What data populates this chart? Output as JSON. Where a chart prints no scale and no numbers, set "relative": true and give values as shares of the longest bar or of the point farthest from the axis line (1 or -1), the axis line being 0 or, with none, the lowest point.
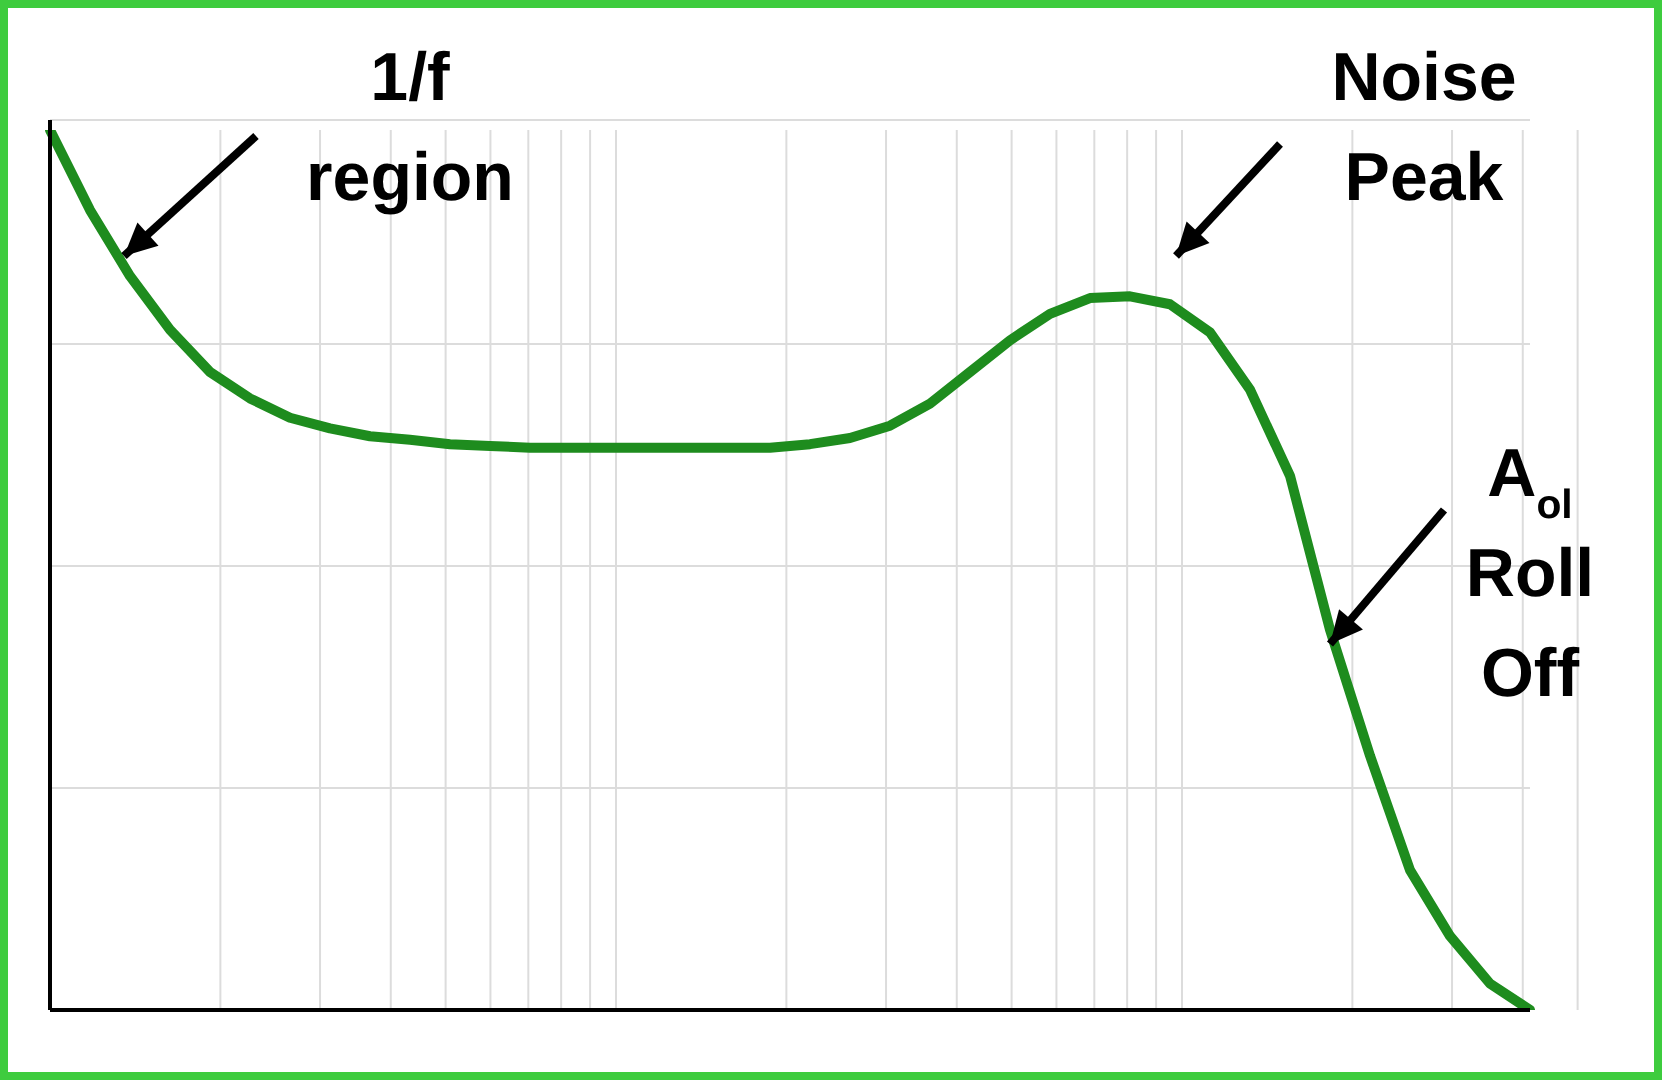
{
  "chart_data": {
    "type": "line",
    "relative": true,
    "grid": true,
    "marker": "none",
    "line_style": "solid",
    "categories": [
      null,
      null,
      null,
      null,
      null,
      null,
      null,
      null,
      null,
      null,
      null,
      null,
      null,
      null,
      null,
      null,
      null,
      null,
      null,
      null,
      null,
      null,
      null,
      null,
      null,
      null,
      null,
      null,
      null,
      null,
      null,
      null,
      null,
      null,
      null,
      null,
      null,
      null
    ],
    "series": [
      {
        "color": "#1e8c1e",
        "values": [
          1.0,
          0.909,
          0.834,
          0.773,
          0.725,
          0.695,
          0.673,
          0.661,
          0.652,
          0.648,
          0.643,
          0.641,
          0.639,
          0.639,
          0.639,
          0.639,
          0.639,
          0.639,
          0.639,
          0.643,
          0.65,
          0.664,
          0.689,
          0.725,
          0.761,
          0.791,
          0.809,
          0.811,
          0.802,
          0.77,
          0.705,
          0.607,
          0.432,
          0.289,
          0.159,
          0.084,
          0.03,
          0
        ]
      }
    ],
    "annotations": [
      "1/f region",
      "Noise Peak",
      "A$_{ol}$ Roll Off"
    ]
  }
}
